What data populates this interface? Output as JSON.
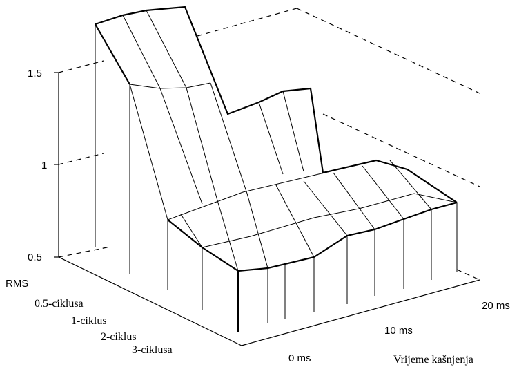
{
  "chart_data": {
    "type": "surface3d",
    "zlabel": "RMS",
    "xlabel": "Vrijeme kašnjenja",
    "zticks": [
      "0.5",
      "1",
      "1.5"
    ],
    "zlim": [
      0.5,
      1.5
    ],
    "series_ticks": [
      "0.5-ciklusa",
      "1-ciklus",
      "2-ciklus",
      "3-ciklusa"
    ],
    "x_ticks": [
      "0 ms",
      "10 ms",
      "20 ms"
    ],
    "grid": false
  }
}
